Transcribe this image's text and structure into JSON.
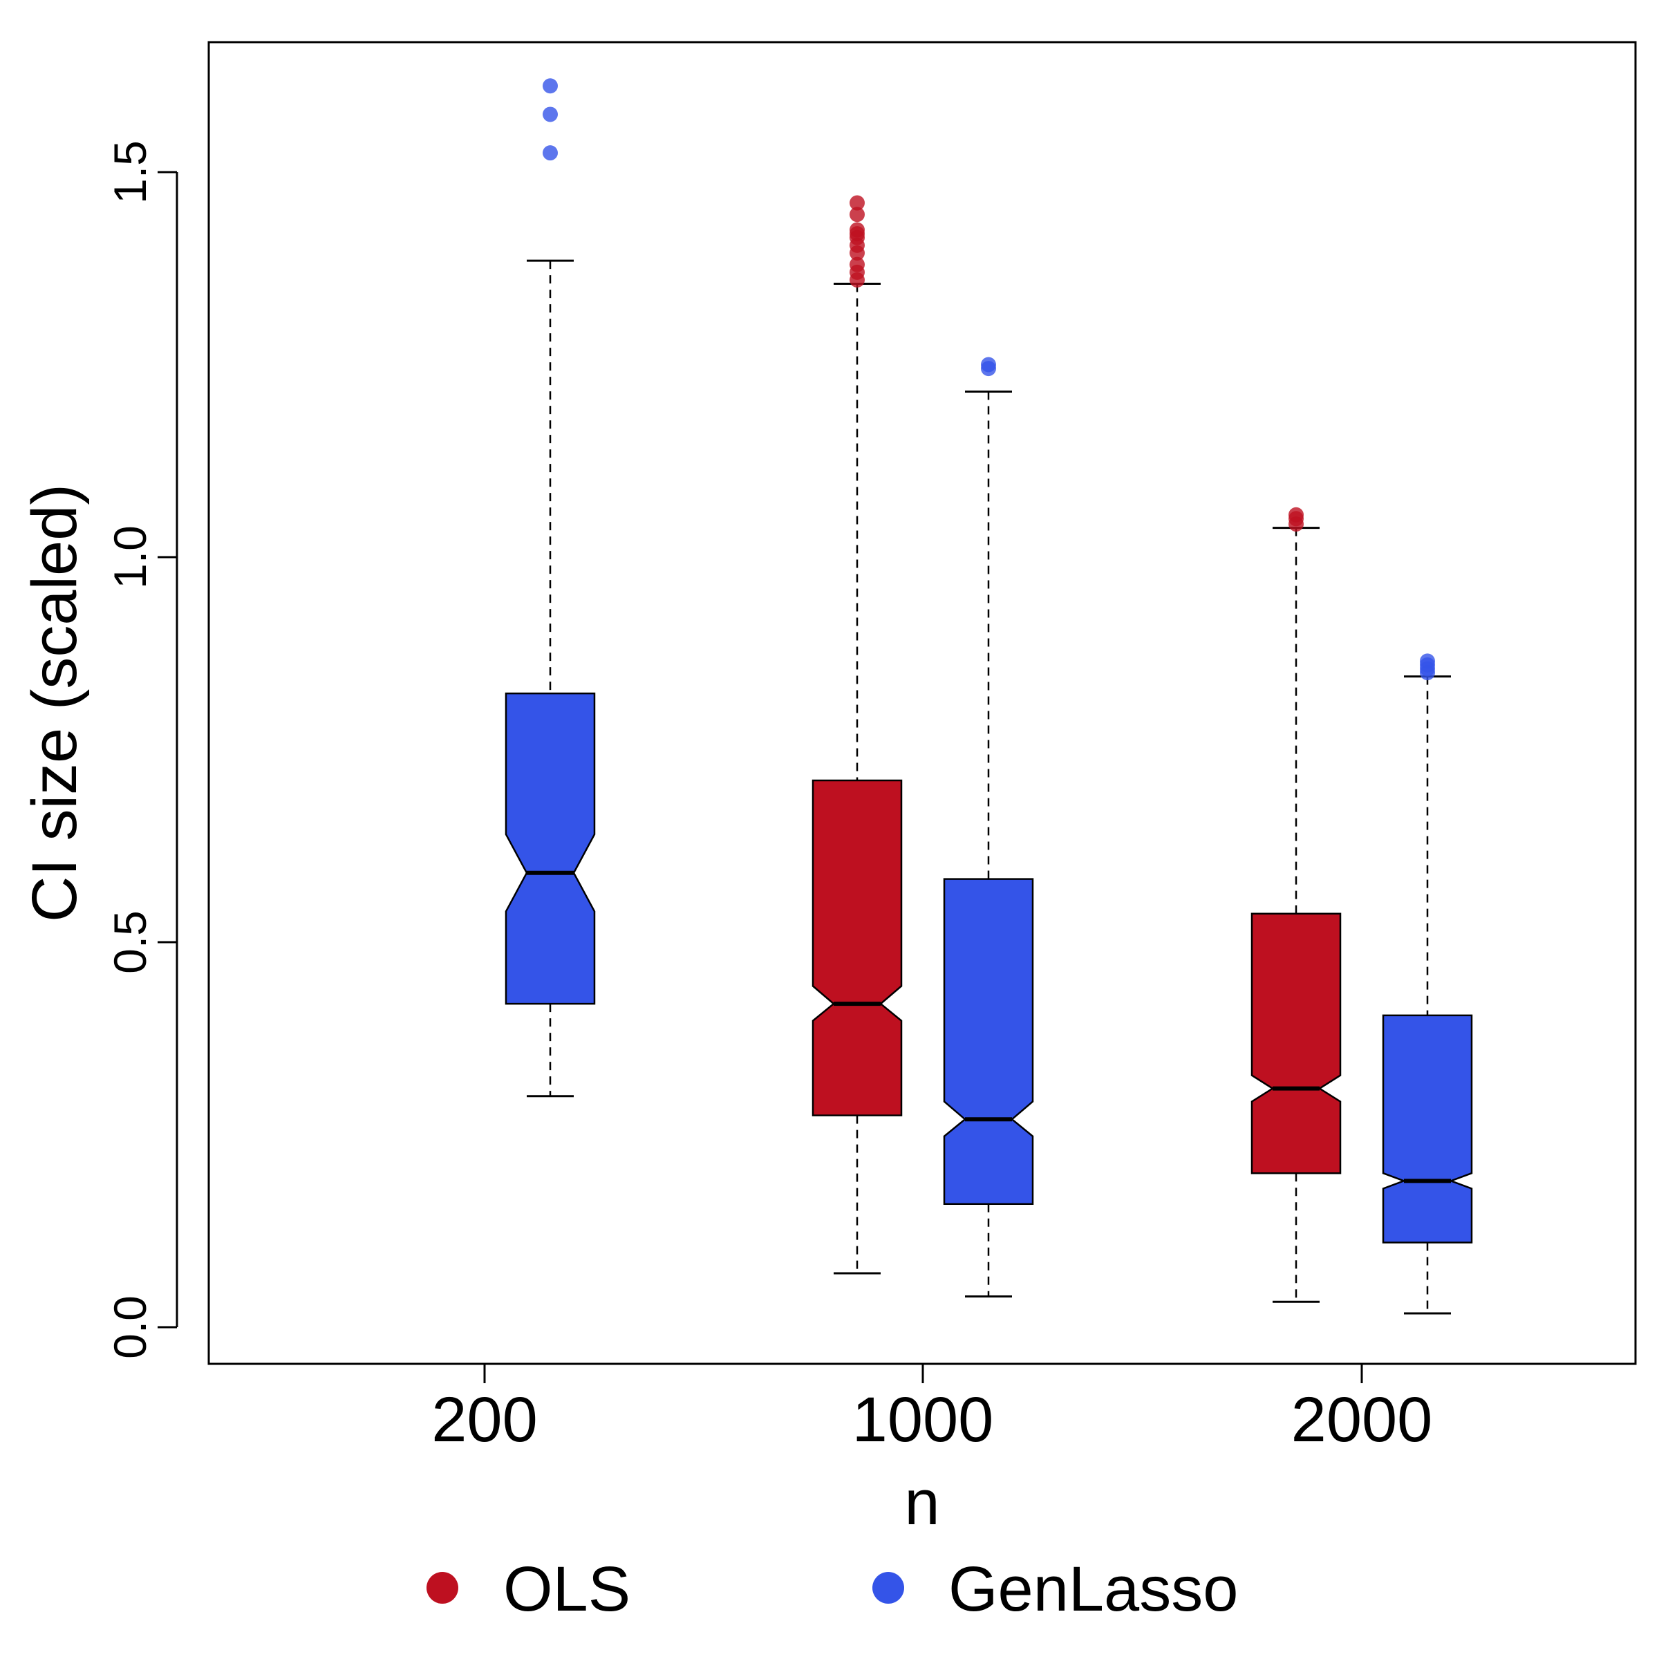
{
  "chart_data": {
    "type": "boxplot",
    "notched": true,
    "xlabel": "n",
    "ylabel": "CI size (scaled)",
    "categories": [
      "200",
      "1000",
      "2000"
    ],
    "yticks": [
      0.0,
      0.5,
      1.0,
      1.5
    ],
    "ytick_labels": [
      "0.0",
      "0.5",
      "1.0",
      "1.5"
    ],
    "ylim": [
      -0.045,
      1.67
    ],
    "legend": {
      "position": "bottom",
      "items": [
        {
          "name": "OLS",
          "color": "#be1020"
        },
        {
          "name": "GenLasso",
          "color": "#3454e8"
        }
      ]
    },
    "series": [
      {
        "name": "OLS",
        "color": "#be1020",
        "boxes": [
          null,
          {
            "whisker_low": 0.07,
            "q1": 0.275,
            "median": 0.42,
            "q3": 0.71,
            "whisker_high": 1.355,
            "notch_low": 0.398,
            "notch_high": 0.443,
            "outliers": [
              1.36,
              1.37,
              1.38,
              1.395,
              1.405,
              1.415,
              1.42,
              1.425,
              1.445,
              1.46
            ]
          },
          {
            "whisker_low": 0.033,
            "q1": 0.2,
            "median": 0.31,
            "q3": 0.537,
            "whisker_high": 1.038,
            "notch_low": 0.293,
            "notch_high": 0.327,
            "outliers": [
              1.043,
              1.05,
              1.055
            ]
          }
        ]
      },
      {
        "name": "GenLasso",
        "color": "#3454e8",
        "boxes": [
          {
            "whisker_low": 0.3,
            "q1": 0.42,
            "median": 0.59,
            "q3": 0.823,
            "whisker_high": 1.385,
            "notch_low": 0.54,
            "notch_high": 0.64,
            "outliers": [
              1.525,
              1.575,
              1.612
            ]
          },
          {
            "whisker_low": 0.04,
            "q1": 0.16,
            "median": 0.27,
            "q3": 0.582,
            "whisker_high": 1.215,
            "notch_low": 0.248,
            "notch_high": 0.293,
            "outliers": [
              1.245,
              1.25
            ]
          },
          {
            "whisker_low": 0.018,
            "q1": 0.11,
            "median": 0.19,
            "q3": 0.405,
            "whisker_high": 0.845,
            "notch_low": 0.18,
            "notch_high": 0.2,
            "outliers": [
              0.85,
              0.855,
              0.86,
              0.865
            ]
          }
        ]
      }
    ]
  }
}
